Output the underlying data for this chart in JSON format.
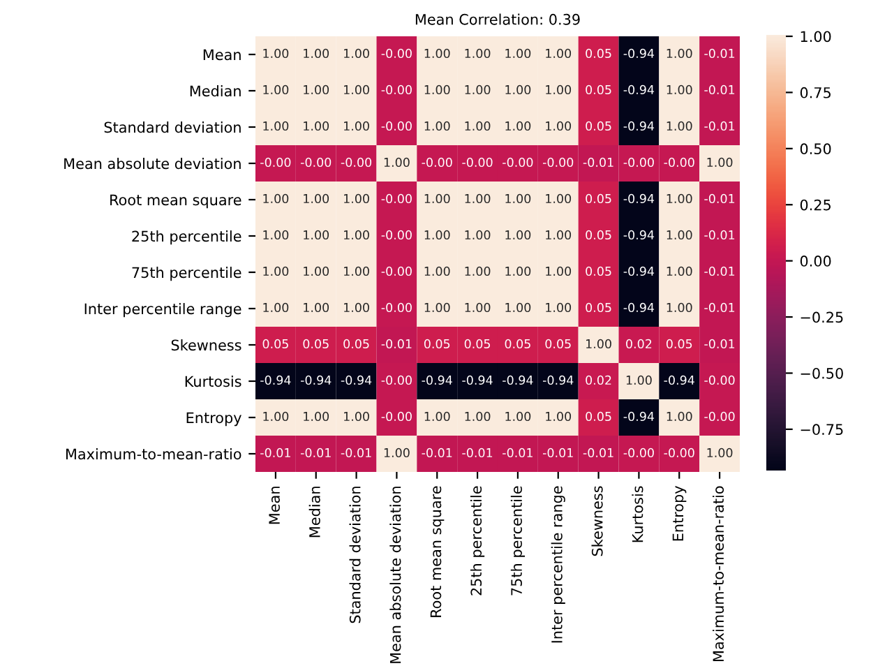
{
  "chart_data": {
    "type": "heatmap",
    "title": "Mean Correlation: 0.39",
    "categories": [
      "Mean",
      "Median",
      "Standard deviation",
      "Mean absolute deviation",
      "Root mean square",
      "25th percentile",
      "75th percentile",
      "Inter percentile range",
      "Skewness",
      "Kurtosis",
      "Entropy",
      "Maximum-to-mean-ratio"
    ],
    "y_categories": [
      "Mean",
      "Median",
      "Standard deviation",
      "Mean absolute deviation",
      "Root mean square",
      "25th percentile",
      "75th percentile",
      "Inter percentile range",
      "Skewness",
      "Kurtosis",
      "Entropy",
      "Maximum-to-mean-ratio"
    ],
    "cells": [
      [
        1.0,
        1.0,
        1.0,
        -0.0,
        1.0,
        1.0,
        1.0,
        1.0,
        0.05,
        -0.94,
        1.0,
        -0.01
      ],
      [
        1.0,
        1.0,
        1.0,
        -0.0,
        1.0,
        1.0,
        1.0,
        1.0,
        0.05,
        -0.94,
        1.0,
        -0.01
      ],
      [
        1.0,
        1.0,
        1.0,
        -0.0,
        1.0,
        1.0,
        1.0,
        1.0,
        0.05,
        -0.94,
        1.0,
        -0.01
      ],
      [
        -0.0,
        -0.0,
        -0.0,
        1.0,
        -0.0,
        -0.0,
        -0.0,
        -0.0,
        -0.01,
        -0.0,
        -0.0,
        1.0
      ],
      [
        1.0,
        1.0,
        1.0,
        -0.0,
        1.0,
        1.0,
        1.0,
        1.0,
        0.05,
        -0.94,
        1.0,
        -0.01
      ],
      [
        1.0,
        1.0,
        1.0,
        -0.0,
        1.0,
        1.0,
        1.0,
        1.0,
        0.05,
        -0.94,
        1.0,
        -0.01
      ],
      [
        1.0,
        1.0,
        1.0,
        -0.0,
        1.0,
        1.0,
        1.0,
        1.0,
        0.05,
        -0.94,
        1.0,
        -0.01
      ],
      [
        1.0,
        1.0,
        1.0,
        -0.0,
        1.0,
        1.0,
        1.0,
        1.0,
        0.05,
        -0.94,
        1.0,
        -0.01
      ],
      [
        0.05,
        0.05,
        0.05,
        -0.01,
        0.05,
        0.05,
        0.05,
        0.05,
        1.0,
        0.02,
        0.05,
        -0.01
      ],
      [
        -0.94,
        -0.94,
        -0.94,
        -0.0,
        -0.94,
        -0.94,
        -0.94,
        -0.94,
        0.02,
        1.0,
        -0.94,
        -0.0
      ],
      [
        1.0,
        1.0,
        1.0,
        -0.0,
        1.0,
        1.0,
        1.0,
        1.0,
        0.05,
        -0.94,
        1.0,
        -0.0
      ],
      [
        -0.01,
        -0.01,
        -0.01,
        1.0,
        -0.01,
        -0.01,
        -0.01,
        -0.01,
        -0.01,
        -0.0,
        -0.0,
        1.0
      ]
    ],
    "cell_labels": [
      [
        "1.00",
        "1.00",
        "1.00",
        "-0.00",
        "1.00",
        "1.00",
        "1.00",
        "1.00",
        "0.05",
        "-0.94",
        "1.00",
        "-0.01"
      ],
      [
        "1.00",
        "1.00",
        "1.00",
        "-0.00",
        "1.00",
        "1.00",
        "1.00",
        "1.00",
        "0.05",
        "-0.94",
        "1.00",
        "-0.01"
      ],
      [
        "1.00",
        "1.00",
        "1.00",
        "-0.00",
        "1.00",
        "1.00",
        "1.00",
        "1.00",
        "0.05",
        "-0.94",
        "1.00",
        "-0.01"
      ],
      [
        "-0.00",
        "-0.00",
        "-0.00",
        "1.00",
        "-0.00",
        "-0.00",
        "-0.00",
        "-0.00",
        "-0.01",
        "-0.00",
        "-0.00",
        "1.00"
      ],
      [
        "1.00",
        "1.00",
        "1.00",
        "-0.00",
        "1.00",
        "1.00",
        "1.00",
        "1.00",
        "0.05",
        "-0.94",
        "1.00",
        "-0.01"
      ],
      [
        "1.00",
        "1.00",
        "1.00",
        "-0.00",
        "1.00",
        "1.00",
        "1.00",
        "1.00",
        "0.05",
        "-0.94",
        "1.00",
        "-0.01"
      ],
      [
        "1.00",
        "1.00",
        "1.00",
        "-0.00",
        "1.00",
        "1.00",
        "1.00",
        "1.00",
        "0.05",
        "-0.94",
        "1.00",
        "-0.01"
      ],
      [
        "1.00",
        "1.00",
        "1.00",
        "-0.00",
        "1.00",
        "1.00",
        "1.00",
        "1.00",
        "0.05",
        "-0.94",
        "1.00",
        "-0.01"
      ],
      [
        "0.05",
        "0.05",
        "0.05",
        "-0.01",
        "0.05",
        "0.05",
        "0.05",
        "0.05",
        "1.00",
        "0.02",
        "0.05",
        "-0.01"
      ],
      [
        "-0.94",
        "-0.94",
        "-0.94",
        "-0.00",
        "-0.94",
        "-0.94",
        "-0.94",
        "-0.94",
        "0.02",
        "1.00",
        "-0.94",
        "-0.00"
      ],
      [
        "1.00",
        "1.00",
        "1.00",
        "-0.00",
        "1.00",
        "1.00",
        "1.00",
        "1.00",
        "0.05",
        "-0.94",
        "1.00",
        "-0.00"
      ],
      [
        "-0.01",
        "-0.01",
        "-0.01",
        "1.00",
        "-0.01",
        "-0.01",
        "-0.01",
        "-0.01",
        "-0.01",
        "-0.00",
        "-0.00",
        "1.00"
      ]
    ],
    "clim": [
      -0.94,
      1.0
    ],
    "cticks": [
      {
        "value": -0.75,
        "label": "−0.75"
      },
      {
        "value": -0.5,
        "label": "−0.50"
      },
      {
        "value": -0.25,
        "label": "−0.25"
      },
      {
        "value": 0,
        "label": "0.00"
      },
      {
        "value": 0.25,
        "label": "0.25"
      },
      {
        "value": 0.5,
        "label": "0.50"
      },
      {
        "value": 0.75,
        "label": "0.75"
      },
      {
        "value": 1,
        "label": "1.00"
      }
    ]
  }
}
